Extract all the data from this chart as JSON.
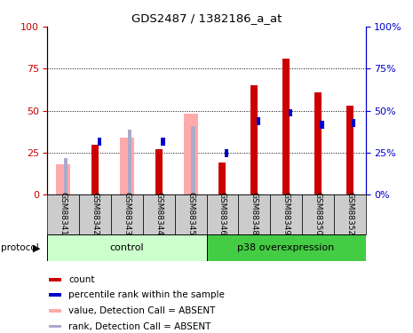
{
  "title": "GDS2487 / 1382186_a_at",
  "samples": [
    "GSM88341",
    "GSM88342",
    "GSM88343",
    "GSM88344",
    "GSM88345",
    "GSM88346",
    "GSM88348",
    "GSM88349",
    "GSM88350",
    "GSM88352"
  ],
  "count_values": [
    0,
    30,
    0,
    27,
    0,
    19,
    65,
    81,
    61,
    53
  ],
  "rank_values": [
    22,
    34,
    39,
    34,
    41,
    27,
    46,
    51,
    44,
    45
  ],
  "absent_value_values": [
    18,
    0,
    34,
    0,
    48,
    0,
    0,
    0,
    0,
    0
  ],
  "absent_rank_values": [
    0,
    0,
    0,
    0,
    0,
    0,
    0,
    0,
    0,
    0
  ],
  "is_absent": [
    true,
    false,
    true,
    false,
    true,
    false,
    false,
    false,
    false,
    false
  ],
  "control_count": 5,
  "p38_count": 5,
  "color_count": "#cc0000",
  "color_rank": "#0000cc",
  "color_absent_value": "#ffaaaa",
  "color_absent_rank": "#aaaacc",
  "color_control_bg": "#ccffcc",
  "color_p38_bg": "#44cc44",
  "color_tick_bg": "#cccccc",
  "ylim": [
    0,
    100
  ],
  "yticks": [
    0,
    25,
    50,
    75,
    100
  ],
  "figsize": [
    4.65,
    3.75
  ],
  "dpi": 100
}
